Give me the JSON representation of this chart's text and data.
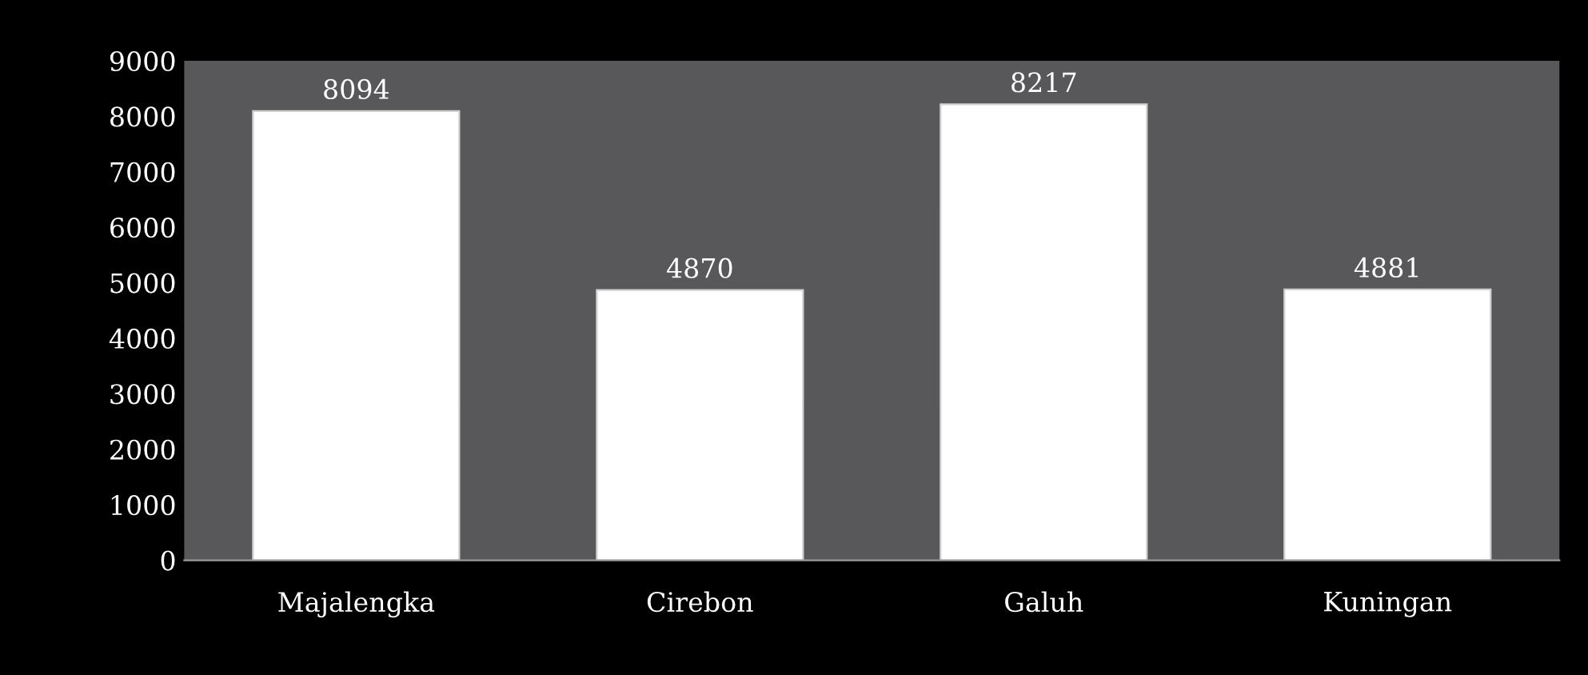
{
  "chart_data": {
    "type": "bar",
    "categories": [
      "Majalengka",
      "Cirebon",
      "Galuh",
      "Kuningan"
    ],
    "values": [
      8094,
      4870,
      8217,
      4881
    ],
    "color": "#ffffff",
    "ylim": [
      0,
      9000
    ],
    "yticks": [
      0,
      1000,
      2000,
      3000,
      4000,
      5000,
      6000,
      7000,
      8000,
      9000
    ],
    "data_labels": true,
    "grid": false,
    "legend": false
  }
}
